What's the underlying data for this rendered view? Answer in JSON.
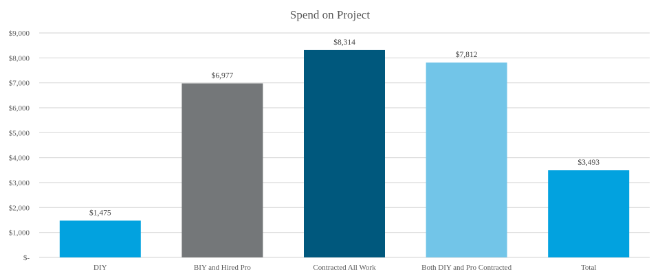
{
  "chart_data": {
    "type": "bar",
    "title": "Spend on Project",
    "xlabel": "",
    "ylabel": "",
    "categories": [
      "DIY",
      "BIY and Hired Pro",
      "Contracted All Work",
      "Both DIY and Pro Contracted",
      "Total"
    ],
    "values": [
      1475,
      6977,
      8314,
      7812,
      3493
    ],
    "data_labels": [
      "$1,475",
      "$6,977",
      "$8,314",
      "$7,812",
      "$3,493"
    ],
    "colors": [
      "#02A2DF",
      "#747779",
      "#00587D",
      "#72C5E8",
      "#02A2DF"
    ],
    "ylim": [
      0,
      9000
    ],
    "yticks": [
      0,
      1000,
      2000,
      3000,
      4000,
      5000,
      6000,
      7000,
      8000,
      9000
    ],
    "ytick_labels": [
      "$-",
      "$1,000",
      "$2,000",
      "$3,000",
      "$4,000",
      "$5,000",
      "$6,000",
      "$7,000",
      "$8,000",
      "$9,000"
    ],
    "grid": true,
    "legend": "none",
    "gridline_color": "#D9D9D9"
  }
}
